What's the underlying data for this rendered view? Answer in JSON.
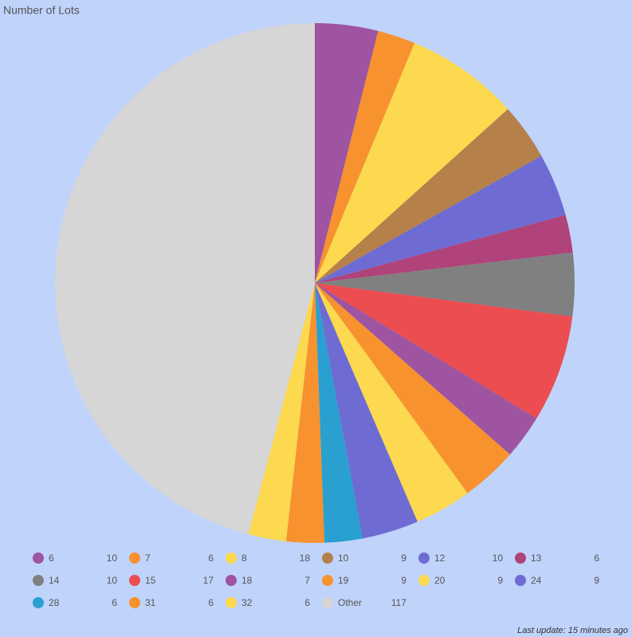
{
  "chart_data": {
    "type": "pie",
    "title": "Number of Lots",
    "categories": [
      "6",
      "7",
      "8",
      "10",
      "12",
      "13",
      "14",
      "15",
      "18",
      "19",
      "20",
      "24",
      "28",
      "31",
      "32",
      "Other"
    ],
    "values": [
      10,
      6,
      18,
      9,
      10,
      6,
      10,
      17,
      7,
      9,
      9,
      9,
      6,
      6,
      6,
      117
    ],
    "colors": [
      "#9e54a0",
      "#f7922f",
      "#fcd94e",
      "#b5804a",
      "#6e6bd3",
      "#b0437a",
      "#808080",
      "#eb4d50",
      "#9e54a0",
      "#f7922f",
      "#fcd94e",
      "#6e6bd3",
      "#29a0cf",
      "#f7922f",
      "#fcd94e",
      "#d6d6d6"
    ],
    "footer": "Last update: 15 minutes ago"
  }
}
